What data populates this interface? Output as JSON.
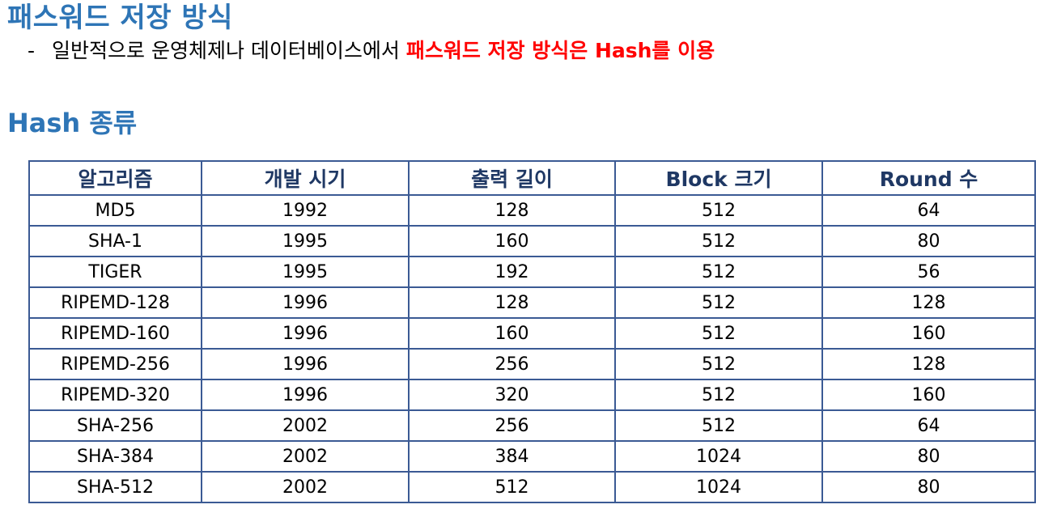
{
  "title": "패스워드 저장 방식",
  "bullet": {
    "dash": "-",
    "normal": "일반적으로 운영체제나 데이터베이스에서 ",
    "highlight": "패스워드 저장 방식은 Hash를 이용"
  },
  "subtitle": "Hash 종류",
  "colors": {
    "title": "#2e75b6",
    "highlight": "#ff0000",
    "header_text": "#1f3864",
    "table_border": "#3b5a94"
  },
  "table": {
    "headers": [
      "알고리즘",
      "개발 시기",
      "출력 길이",
      "Block 크기",
      "Round 수"
    ],
    "rows": [
      [
        "MD5",
        "1992",
        "128",
        "512",
        "64"
      ],
      [
        "SHA-1",
        "1995",
        "160",
        "512",
        "80"
      ],
      [
        "TIGER",
        "1995",
        "192",
        "512",
        "56"
      ],
      [
        "RIPEMD-128",
        "1996",
        "128",
        "512",
        "128"
      ],
      [
        "RIPEMD-160",
        "1996",
        "160",
        "512",
        "160"
      ],
      [
        "RIPEMD-256",
        "1996",
        "256",
        "512",
        "128"
      ],
      [
        "RIPEMD-320",
        "1996",
        "320",
        "512",
        "160"
      ],
      [
        "SHA-256",
        "2002",
        "256",
        "512",
        "64"
      ],
      [
        "SHA-384",
        "2002",
        "384",
        "1024",
        "80"
      ],
      [
        "SHA-512",
        "2002",
        "512",
        "1024",
        "80"
      ]
    ]
  }
}
